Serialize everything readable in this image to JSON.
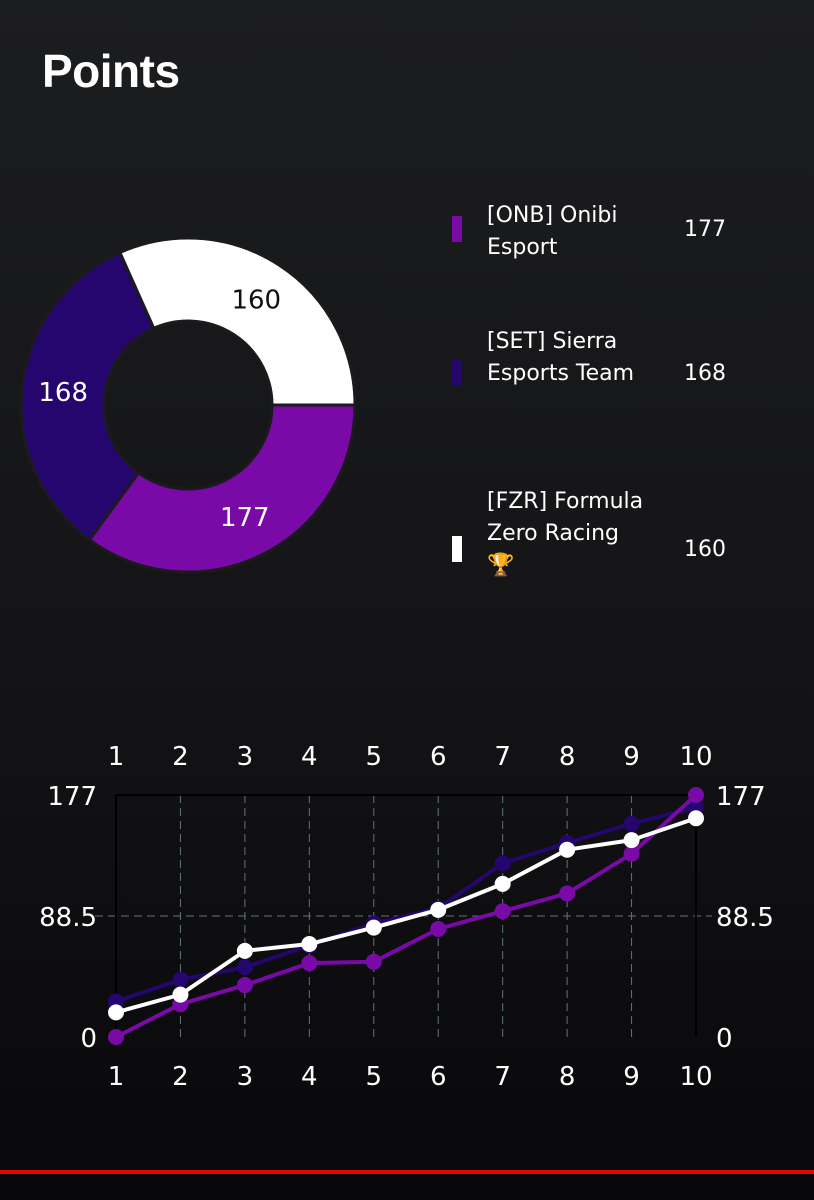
{
  "page": {
    "title": "Points"
  },
  "colors": {
    "onb": "#7a0aa7",
    "set": "#24066e",
    "fzr": "#ffffff",
    "accent": "#e10600"
  },
  "legend": [
    {
      "name": "[ONB] Onibi Esport",
      "value": "177",
      "color": "#7a0aa7",
      "icon": ""
    },
    {
      "name": "[SET] Sierra Esports Team",
      "value": "168",
      "color": "#24066e",
      "icon": ""
    },
    {
      "name": "[FZR] Formula Zero Racing",
      "value": "160",
      "color": "#ffffff",
      "icon": "🏆"
    }
  ],
  "chart_data": [
    {
      "type": "pie",
      "donut": true,
      "labels": [
        "[ONB] Onibi Esport",
        "[SET] Sierra Esports Team",
        "[FZR] Formula Zero Racing"
      ],
      "values": [
        177,
        168,
        160
      ]
    },
    {
      "type": "line",
      "x": [
        1,
        2,
        3,
        4,
        5,
        6,
        7,
        8,
        9,
        10
      ],
      "ylim": [
        0,
        177
      ],
      "yticks": [
        "0",
        "88.5",
        "177"
      ],
      "grid": true,
      "series": [
        {
          "name": "[SET] Sierra Esports Team",
          "color": "#24066e",
          "values": [
            26,
            42,
            51,
            67,
            83,
            94,
            127,
            142,
            156,
            168
          ]
        },
        {
          "name": "[ONB] Onibi Esport",
          "color": "#7a0aa7",
          "values": [
            0,
            24,
            38,
            54,
            55,
            79,
            92,
            105,
            134,
            177
          ]
        },
        {
          "name": "[FZR] Formula Zero Racing",
          "color": "#ffffff",
          "values": [
            18,
            31,
            63,
            68,
            80,
            93,
            112,
            137,
            144,
            160
          ]
        }
      ]
    }
  ]
}
